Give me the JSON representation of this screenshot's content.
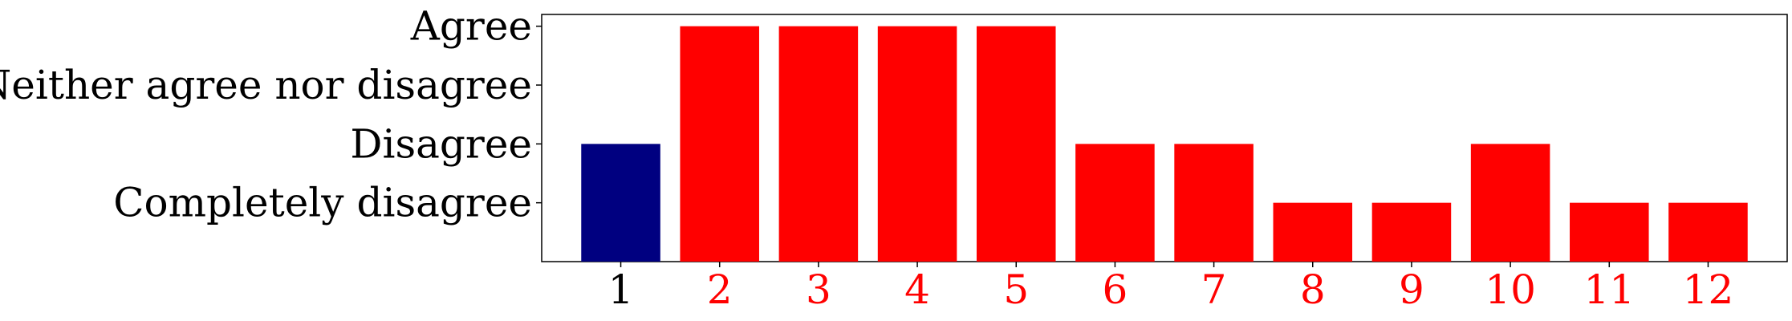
{
  "chart_data": {
    "type": "bar",
    "categories": [
      "1",
      "2",
      "3",
      "4",
      "5",
      "6",
      "7",
      "8",
      "9",
      "10",
      "11",
      "12"
    ],
    "values": [
      2,
      4,
      4,
      4,
      4,
      2,
      2,
      1,
      1,
      2,
      1,
      1
    ],
    "bar_colors": [
      "#000080",
      "#ff0000",
      "#ff0000",
      "#ff0000",
      "#ff0000",
      "#ff0000",
      "#ff0000",
      "#ff0000",
      "#ff0000",
      "#ff0000",
      "#ff0000",
      "#ff0000"
    ],
    "category_label_colors": [
      "#000000",
      "#ff0000",
      "#ff0000",
      "#ff0000",
      "#ff0000",
      "#ff0000",
      "#ff0000",
      "#ff0000",
      "#ff0000",
      "#ff0000",
      "#ff0000",
      "#ff0000"
    ],
    "y_ticks": [
      {
        "value": 1,
        "label": "Completely disagree"
      },
      {
        "value": 2,
        "label": "Disagree"
      },
      {
        "value": 3,
        "label": "Neither agree nor disagree"
      },
      {
        "value": 4,
        "label": "Agree"
      }
    ],
    "ylim": [
      0,
      4.2
    ],
    "grid": false,
    "title": "",
    "xlabel": "",
    "ylabel": ""
  }
}
